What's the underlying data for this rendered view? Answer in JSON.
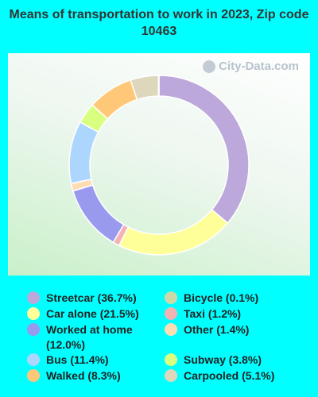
{
  "title": "Means of transportation to work in 2023, Zip code 10463",
  "watermark": "City-Data.com",
  "chart_data": {
    "type": "pie",
    "donut": true,
    "slices": [
      {
        "label": "Streetcar (36.7%)",
        "value": 36.7,
        "color": "#BCA8DB"
      },
      {
        "label": "Car alone (21.5%)",
        "value": 21.5,
        "color": "#FFFF99"
      },
      {
        "label": "Taxi (1.2%)",
        "value": 1.2,
        "color": "#F3B3B3"
      },
      {
        "label": "Worked at home (12.0%)",
        "value": 12.0,
        "color": "#9999EE"
      },
      {
        "label": "Other (1.4%)",
        "value": 1.4,
        "color": "#FFDDB4"
      },
      {
        "label": "Bus (11.4%)",
        "value": 11.4,
        "color": "#ADD6FF"
      },
      {
        "label": "Subway (3.8%)",
        "value": 3.8,
        "color": "#D9FF80"
      },
      {
        "label": "Walked (8.3%)",
        "value": 8.3,
        "color": "#FFC878"
      },
      {
        "label": "Carpooled (5.1%)",
        "value": 5.1,
        "color": "#DDD8BB"
      },
      {
        "label": "Bicycle (0.1%)",
        "value": 0.1,
        "color": "#CCD9A6"
      }
    ]
  },
  "legend": {
    "left": [
      {
        "label": "Streetcar (36.7%)",
        "color": "#BCA8DB"
      },
      {
        "label": "Car alone (21.5%)",
        "color": "#FFFF99"
      },
      {
        "label": "Worked at home (12.0%)",
        "color": "#9999EE"
      },
      {
        "label": "Bus (11.4%)",
        "color": "#ADD6FF"
      },
      {
        "label": "Walked (8.3%)",
        "color": "#FFC878"
      }
    ],
    "right": [
      {
        "label": "Bicycle (0.1%)",
        "color": "#CCD9A6"
      },
      {
        "label": "Taxi (1.2%)",
        "color": "#F3B3B3"
      },
      {
        "label": "Other (1.4%)",
        "color": "#FFDDB4"
      },
      {
        "label": "Subway (3.8%)",
        "color": "#D9FF80"
      },
      {
        "label": "Carpooled (5.1%)",
        "color": "#DDD8BB"
      }
    ]
  }
}
